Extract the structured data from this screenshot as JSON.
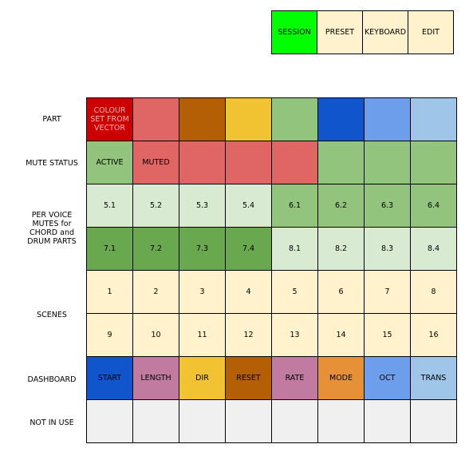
{
  "tabs": [
    {
      "label": "SESSION",
      "active": true
    },
    {
      "label": "PRESET",
      "active": false
    },
    {
      "label": "KEYBOARD",
      "active": false
    },
    {
      "label": "EDIT",
      "active": false
    }
  ],
  "row_labels": {
    "part": "PART",
    "mute_status": "MUTE STATUS",
    "per_voice": "PER VOICE MUTES for CHORD and DRUM PARTS",
    "scenes": "SCENES",
    "dashboard": "DASHBOARD",
    "not_in_use": "NOT IN USE"
  },
  "grid": [
    [
      {
        "text": "COLOUR SET FROM VECTOR",
        "color": "#cc0000",
        "textColor": "#f4b4b4"
      },
      {
        "text": "",
        "color": "#e06666"
      },
      {
        "text": "",
        "color": "#b45f06"
      },
      {
        "text": "",
        "color": "#f1c232"
      },
      {
        "text": "",
        "color": "#93c47d"
      },
      {
        "text": "",
        "color": "#1155cc"
      },
      {
        "text": "",
        "color": "#6d9eeb"
      },
      {
        "text": "",
        "color": "#9fc5e8"
      }
    ],
    [
      {
        "text": "ACTIVE",
        "color": "#93c47d"
      },
      {
        "text": "MUTED",
        "color": "#e06666"
      },
      {
        "text": "",
        "color": "#e06666"
      },
      {
        "text": "",
        "color": "#e06666"
      },
      {
        "text": "",
        "color": "#e06666"
      },
      {
        "text": "",
        "color": "#93c47d"
      },
      {
        "text": "",
        "color": "#93c47d"
      },
      {
        "text": "",
        "color": "#93c47d"
      }
    ],
    [
      {
        "text": "5.1",
        "color": "#d9ead3"
      },
      {
        "text": "5.2",
        "color": "#d9ead3"
      },
      {
        "text": "5.3",
        "color": "#d9ead3"
      },
      {
        "text": "5.4",
        "color": "#d9ead3"
      },
      {
        "text": "6.1",
        "color": "#93c47d"
      },
      {
        "text": "6.2",
        "color": "#93c47d"
      },
      {
        "text": "6.3",
        "color": "#93c47d"
      },
      {
        "text": "6.4",
        "color": "#93c47d"
      }
    ],
    [
      {
        "text": "7.1",
        "color": "#6aa84f"
      },
      {
        "text": "7.2",
        "color": "#6aa84f"
      },
      {
        "text": "7.3",
        "color": "#6aa84f"
      },
      {
        "text": "7.4",
        "color": "#6aa84f"
      },
      {
        "text": "8.1",
        "color": "#d9ead3"
      },
      {
        "text": "8.2",
        "color": "#d9ead3"
      },
      {
        "text": "8.3",
        "color": "#d9ead3"
      },
      {
        "text": "8.4",
        "color": "#d9ead3"
      }
    ],
    [
      {
        "text": "1",
        "color": "#fff2cc"
      },
      {
        "text": "2",
        "color": "#fff2cc"
      },
      {
        "text": "3",
        "color": "#fff2cc"
      },
      {
        "text": "4",
        "color": "#fff2cc"
      },
      {
        "text": "5",
        "color": "#fff2cc"
      },
      {
        "text": "6",
        "color": "#fff2cc"
      },
      {
        "text": "7",
        "color": "#fff2cc"
      },
      {
        "text": "8",
        "color": "#fff2cc"
      }
    ],
    [
      {
        "text": "9",
        "color": "#fff2cc"
      },
      {
        "text": "10",
        "color": "#fff2cc"
      },
      {
        "text": "11",
        "color": "#fff2cc"
      },
      {
        "text": "12",
        "color": "#fff2cc"
      },
      {
        "text": "13",
        "color": "#fff2cc"
      },
      {
        "text": "14",
        "color": "#fff2cc"
      },
      {
        "text": "15",
        "color": "#fff2cc"
      },
      {
        "text": "16",
        "color": "#fff2cc"
      }
    ],
    [
      {
        "text": "START",
        "color": "#1155cc"
      },
      {
        "text": "LENGTH",
        "color": "#c27ba0"
      },
      {
        "text": "DIR",
        "color": "#f1c232"
      },
      {
        "text": "RESET",
        "color": "#b45f06"
      },
      {
        "text": "RATE",
        "color": "#c27ba0"
      },
      {
        "text": "MODE",
        "color": "#e69138"
      },
      {
        "text": "OCT",
        "color": "#6d9eeb"
      },
      {
        "text": "TRANS",
        "color": "#9fc5e8"
      }
    ],
    [
      {
        "text": "",
        "color": "#f0f0f0"
      },
      {
        "text": "",
        "color": "#f0f0f0"
      },
      {
        "text": "",
        "color": "#f0f0f0"
      },
      {
        "text": "",
        "color": "#f0f0f0"
      },
      {
        "text": "",
        "color": "#f0f0f0"
      },
      {
        "text": "",
        "color": "#f0f0f0"
      },
      {
        "text": "",
        "color": "#f0f0f0"
      },
      {
        "text": "",
        "color": "#f0f0f0"
      }
    ]
  ]
}
